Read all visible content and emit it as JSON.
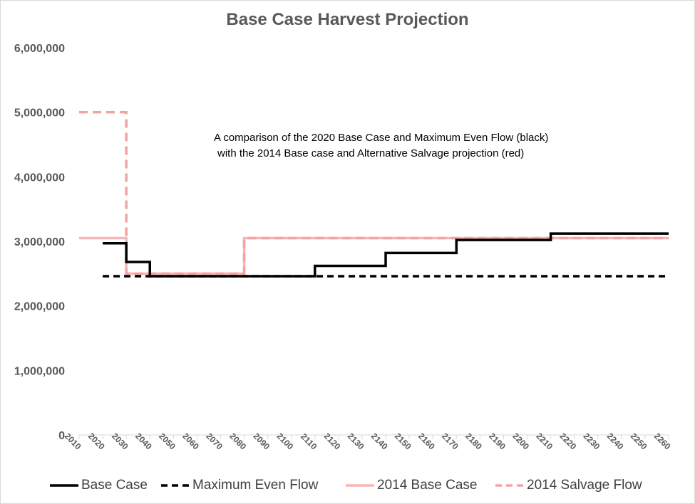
{
  "chart_data": {
    "type": "line",
    "title": "Base Case Harvest Projection",
    "annotation": [
      "A comparison of the 2020 Base Case and Maximum Even Flow (black)",
      "with the 2014 Base case and Alternative Salvage projection (red)"
    ],
    "xlabel": "",
    "ylabel": "",
    "x_ticks": [
      "2010",
      "2020",
      "2030",
      "2040",
      "2050",
      "2060",
      "2070",
      "2080",
      "2090",
      "2100",
      "2110",
      "2120",
      "2130",
      "2140",
      "2150",
      "2160",
      "2170",
      "2180",
      "2190",
      "2200",
      "2210",
      "2220",
      "2230",
      "2240",
      "2250",
      "2260"
    ],
    "y_ticks": [
      "0",
      "1,000,000",
      "2,000,000",
      "3,000,000",
      "4,000,000",
      "5,000,000",
      "6,000,000"
    ],
    "ylim": [
      0,
      6000000
    ],
    "xlim": [
      2010,
      2260
    ],
    "grid": false,
    "step": true,
    "legend_position": "bottom",
    "series": [
      {
        "name": "2014 Base Case",
        "color": "#f4b6b6",
        "dash": "solid",
        "steps": [
          [
            2010,
            3050000
          ],
          [
            2030,
            2500000
          ],
          [
            2080,
            3050000
          ],
          [
            2260,
            3050000
          ]
        ]
      },
      {
        "name": "2014 Salvage Flow",
        "color": "#f4a3a3",
        "dash": "dashed",
        "steps": [
          [
            2010,
            5000000
          ],
          [
            2030,
            2500000
          ],
          [
            2080,
            3050000
          ],
          [
            2260,
            3050000
          ]
        ]
      },
      {
        "name": "Maximum Even Flow",
        "color": "#000000",
        "dash": "dashed",
        "steps": [
          [
            2020,
            2460000
          ],
          [
            2260,
            2460000
          ]
        ]
      },
      {
        "name": "Base Case",
        "color": "#000000",
        "dash": "solid",
        "steps": [
          [
            2020,
            2970000
          ],
          [
            2030,
            2680000
          ],
          [
            2040,
            2460000
          ],
          [
            2110,
            2620000
          ],
          [
            2140,
            2820000
          ],
          [
            2170,
            3020000
          ],
          [
            2210,
            3120000
          ],
          [
            2260,
            3120000
          ]
        ]
      }
    ],
    "legend": [
      {
        "label": "Base Case",
        "color": "#000000",
        "dash": "solid"
      },
      {
        "label": "Maximum Even Flow",
        "color": "#000000",
        "dash": "dashed"
      },
      {
        "label": "2014 Base Case",
        "color": "#f4b6b6",
        "dash": "solid"
      },
      {
        "label": "2014 Salvage Flow",
        "color": "#f4a3a3",
        "dash": "dashed"
      }
    ]
  }
}
